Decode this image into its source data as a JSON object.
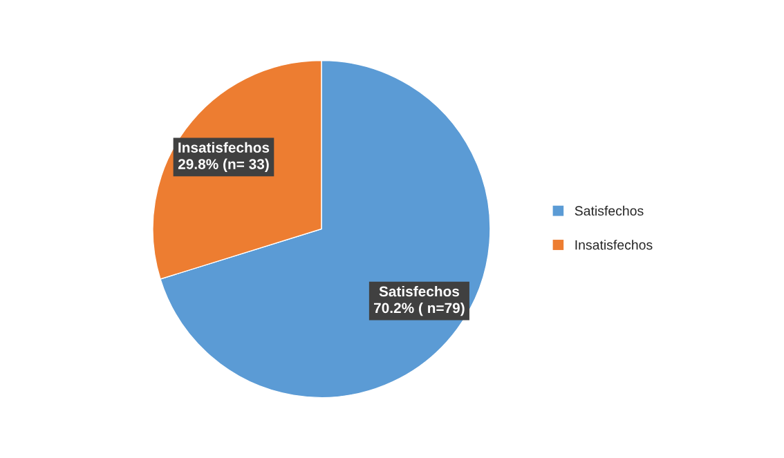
{
  "chart_data": {
    "type": "pie",
    "categories": [
      "Satisfechos",
      "Insatisfechos"
    ],
    "values": [
      70.2,
      29.8
    ],
    "colors": [
      "#5b9bd5",
      "#ed7d31"
    ],
    "value_labels": [
      "Satisfechos\n70.2% ( n=79)",
      "Insatisfechos\n29.8% (n= 33)"
    ],
    "legend": "right"
  }
}
